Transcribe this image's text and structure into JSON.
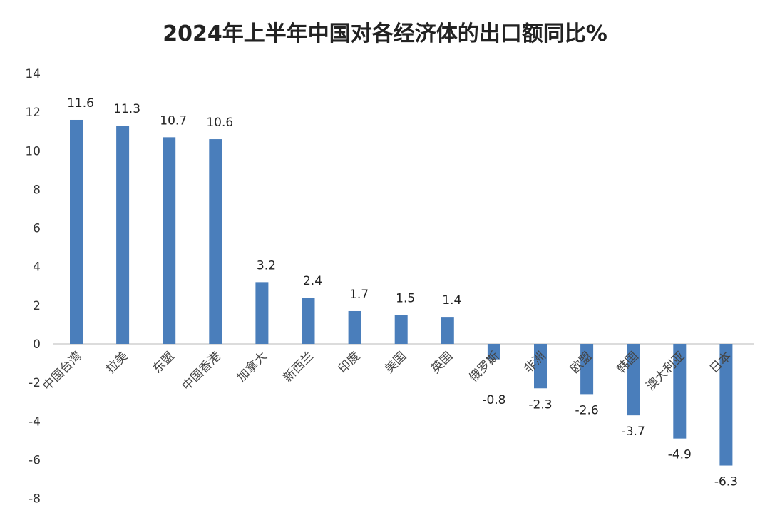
{
  "chart_data": {
    "type": "bar",
    "title": "2024年上半年中国对各经济体的出口额同比%",
    "categories": [
      "中国台湾",
      "拉美",
      "东盟",
      "中国香港",
      "加拿大",
      "新西兰",
      "印度",
      "美国",
      "英国",
      "俄罗斯",
      "非洲",
      "欧盟",
      "韩国",
      "澳大利亚",
      "日本"
    ],
    "values": [
      11.6,
      11.3,
      10.7,
      10.6,
      3.2,
      2.4,
      1.7,
      1.5,
      1.4,
      -0.8,
      -2.3,
      -2.6,
      -3.7,
      -4.9,
      -6.3
    ],
    "ylim": [
      -8,
      14
    ],
    "yticks": [
      14,
      12,
      10,
      8,
      6,
      4,
      2,
      0,
      -2,
      -4,
      -6,
      -8
    ],
    "grid": false,
    "legend": "none",
    "bar_color": "#4a7ebb",
    "xlabel": "",
    "ylabel": ""
  }
}
